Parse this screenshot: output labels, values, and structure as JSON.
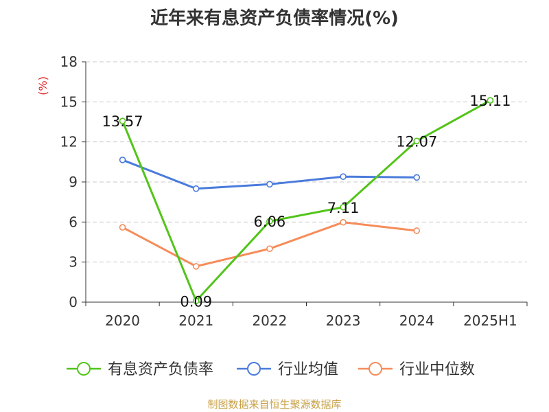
{
  "chart_data": {
    "type": "line",
    "title": "近年来有息资产负债率情况(%)",
    "ylabel": "(%)",
    "xlabel": "",
    "categories": [
      "2020",
      "2021",
      "2022",
      "2023",
      "2024",
      "2025H1"
    ],
    "yticks": [
      0,
      3,
      6,
      9,
      12,
      15,
      18
    ],
    "ylim": [
      0,
      18
    ],
    "grid": true,
    "legend_position": "bottom",
    "series": [
      {
        "name": "有息资产负债率",
        "color": "#52c41a",
        "values": [
          13.57,
          0.09,
          6.06,
          7.11,
          12.07,
          15.11
        ],
        "labels": [
          "13.57",
          "0.09",
          "6.06",
          "7.11",
          "12.07",
          "15.11"
        ]
      },
      {
        "name": "行业均值",
        "color": "#4a7bdc",
        "values": [
          10.65,
          8.5,
          8.83,
          9.4,
          9.34,
          null
        ]
      },
      {
        "name": "行业中位数",
        "color": "#f68c5a",
        "values": [
          5.6,
          2.68,
          4.0,
          5.98,
          5.35,
          null
        ]
      }
    ]
  },
  "source": "制图数据来自恒生聚源数据库"
}
